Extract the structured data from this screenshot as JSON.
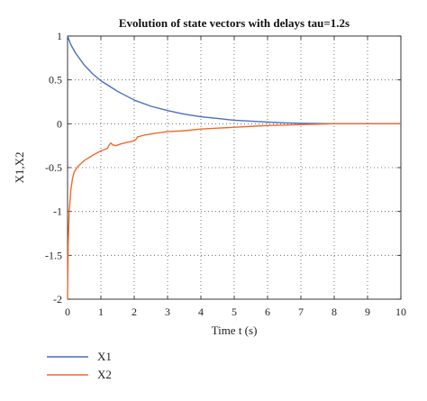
{
  "chart_data": {
    "type": "line",
    "title": "Evolution of state vectors with delays tau=1.2s",
    "xlabel": "Time t (s)",
    "ylabel": "X1,X2",
    "xlim": [
      0,
      10
    ],
    "ylim": [
      -2,
      1
    ],
    "xticks": [
      "0",
      "1",
      "2",
      "3",
      "4",
      "5",
      "6",
      "7",
      "8",
      "9",
      "10"
    ],
    "yticks": [
      "-2",
      "-1.5",
      "-1",
      "-0.5",
      "0",
      "0.5",
      "1"
    ],
    "grid": true,
    "grid_style": "dotted",
    "legend_position": "below-left",
    "series": [
      {
        "name": "X1",
        "color": "#4a6fc0",
        "x": [
          0,
          0.1,
          0.25,
          0.5,
          0.75,
          1,
          1.25,
          1.5,
          1.75,
          2,
          2.5,
          3,
          3.5,
          4,
          4.5,
          5,
          5.5,
          6,
          6.5,
          7,
          8,
          9,
          10
        ],
        "y": [
          1.0,
          0.9,
          0.8,
          0.67,
          0.57,
          0.49,
          0.43,
          0.37,
          0.32,
          0.27,
          0.2,
          0.15,
          0.11,
          0.08,
          0.06,
          0.04,
          0.03,
          0.02,
          0.01,
          0.005,
          0.0,
          0.0,
          0.0
        ]
      },
      {
        "name": "X2",
        "color": "#ef6a2a",
        "x": [
          0,
          0.02,
          0.05,
          0.1,
          0.15,
          0.2,
          0.3,
          0.5,
          0.75,
          1,
          1.2,
          1.25,
          1.3,
          1.35,
          1.45,
          1.6,
          1.8,
          1.95,
          2.05,
          2.1,
          2.3,
          2.6,
          3,
          3.5,
          4,
          4.5,
          5,
          5.5,
          6,
          7,
          8,
          9,
          10
        ],
        "y": [
          -2.0,
          -1.35,
          -1.0,
          -0.75,
          -0.62,
          -0.55,
          -0.49,
          -0.42,
          -0.36,
          -0.31,
          -0.28,
          -0.24,
          -0.22,
          -0.24,
          -0.25,
          -0.23,
          -0.21,
          -0.2,
          -0.18,
          -0.15,
          -0.13,
          -0.11,
          -0.09,
          -0.08,
          -0.06,
          -0.05,
          -0.04,
          -0.03,
          -0.02,
          -0.01,
          0.0,
          0.0,
          0.0
        ]
      }
    ]
  }
}
